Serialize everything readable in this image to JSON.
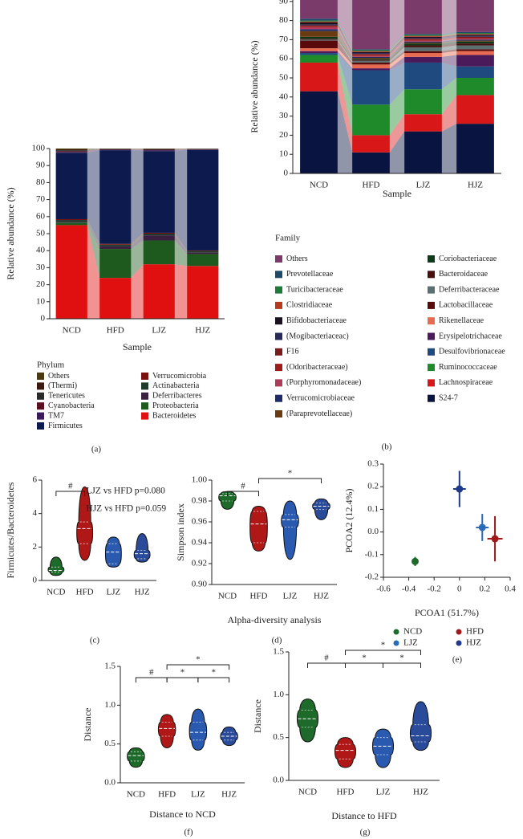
{
  "chart_data": [
    {
      "type": "stacked_bar",
      "panel_label": "(a)",
      "x_label": "Sample",
      "y_label": "Relative abundance (%)",
      "legend_title": "Phylum",
      "categories": [
        "NCD",
        "HFD",
        "LJZ",
        "HJZ"
      ],
      "ylim": [
        0,
        100
      ],
      "yticks": [
        0,
        10,
        20,
        30,
        40,
        50,
        60,
        70,
        80,
        90,
        100
      ],
      "series": [
        {
          "name": "Others",
          "color": "#4a3a12",
          "values": [
            0.7,
            0.2,
            0.3,
            0.1
          ]
        },
        {
          "name": "(Thermi)",
          "color": "#3a1a10",
          "values": [
            0.3,
            0.1,
            0.1,
            0.1
          ]
        },
        {
          "name": "Tenericutes",
          "color": "#2a2a2a",
          "values": [
            0.5,
            0.2,
            0.3,
            0.2
          ]
        },
        {
          "name": "Cyanobacteria",
          "color": "#5a1020",
          "values": [
            0.5,
            0.2,
            0.3,
            0.2
          ]
        },
        {
          "name": "TM7",
          "color": "#3a1a5a",
          "values": [
            0.5,
            0.3,
            0.5,
            0.3
          ]
        },
        {
          "name": "Firmicutes",
          "color": "#0d1a4d",
          "values": [
            39,
            55,
            48,
            59
          ]
        },
        {
          "name": "Verrucomicrobia",
          "color": "#7a1010",
          "values": [
            0.5,
            0.5,
            0.5,
            0.3
          ]
        },
        {
          "name": "Actinabacteria",
          "color": "#1e3a2a",
          "values": [
            1,
            1,
            1,
            0.8
          ]
        },
        {
          "name": "Deferribacteres",
          "color": "#3a2040",
          "values": [
            0.5,
            1.5,
            3,
            1
          ]
        },
        {
          "name": "Proteobacteria",
          "color": "#1e5a1e",
          "values": [
            1.5,
            17,
            14,
            7
          ]
        },
        {
          "name": "Bacteroidetes",
          "color": "#e01010",
          "values": [
            55,
            24,
            32,
            31
          ]
        }
      ]
    },
    {
      "type": "stacked_bar",
      "panel_label": "(b)",
      "x_label": "Sample",
      "y_label": "Relative abundance (%)",
      "legend_title": "Family",
      "categories": [
        "NCD",
        "HFD",
        "LJZ",
        "HJZ"
      ],
      "ylim": [
        0,
        100
      ],
      "yticks": [
        0,
        10,
        20,
        30,
        40,
        50,
        60,
        70,
        80,
        90
      ],
      "series": [
        {
          "name": "Others",
          "color": "#7a3a6a",
          "values": [
            19,
            35,
            27,
            26
          ]
        },
        {
          "name": "Prevotellaceae",
          "color": "#1e4a6a",
          "values": [
            1,
            0.5,
            0.5,
            0.5
          ]
        },
        {
          "name": "Turicibacteraceae",
          "color": "#1e7a3a",
          "values": [
            0.5,
            0.5,
            0.5,
            0.5
          ]
        },
        {
          "name": "Clostridiaceae",
          "color": "#b83a1e",
          "values": [
            0.5,
            0.5,
            0.5,
            0.5
          ]
        },
        {
          "name": "Bifidobacteriaceae",
          "color": "#1a1020",
          "values": [
            1,
            0.5,
            0.5,
            0.5
          ]
        },
        {
          "name": "(Mogibacteriaceac)",
          "color": "#2a2a5a",
          "values": [
            0.5,
            0.5,
            0.5,
            0.5
          ]
        },
        {
          "name": "F16",
          "color": "#7a1a1a",
          "values": [
            0.5,
            0.5,
            0.5,
            0.5
          ]
        },
        {
          "name": "(Odoribacteraceae)",
          "color": "#a01a1a",
          "values": [
            0.5,
            0.5,
            0.5,
            0.5
          ]
        },
        {
          "name": "(Porphyromonadaceae)",
          "color": "#b03a5a",
          "values": [
            1,
            0.5,
            0.5,
            0.5
          ]
        },
        {
          "name": "Verrucomicrobiaceae",
          "color": "#1e2a6a",
          "values": [
            1,
            0.5,
            0.5,
            0.5
          ]
        },
        {
          "name": "(Paraprevotellaceae)",
          "color": "#6a3a10",
          "values": [
            3,
            0.5,
            0.5,
            0.5
          ]
        },
        {
          "name": "Coriobacteriaceae",
          "color": "#0e3a1a",
          "values": [
            1,
            0.5,
            1,
            1
          ]
        },
        {
          "name": "Bacteroidaceae",
          "color": "#4a0e0e",
          "values": [
            0.5,
            0.5,
            1,
            1
          ]
        },
        {
          "name": "Deferribacteraceae",
          "color": "#5a7070",
          "values": [
            0.5,
            1,
            2,
            2
          ]
        },
        {
          "name": "Lactobacillaceae",
          "color": "#5a0a0a",
          "values": [
            4,
            1,
            1,
            1
          ]
        },
        {
          "name": "Rikenellaceae",
          "color": "#e86a50",
          "values": [
            1.5,
            2,
            2,
            2
          ]
        },
        {
          "name": "Erysipelotrichaceae",
          "color": "#4a1a5a",
          "values": [
            1,
            1,
            3,
            6
          ]
        },
        {
          "name": "Desulfovibrionaceae",
          "color": "#1e4a80",
          "values": [
            1,
            18,
            14,
            6
          ]
        },
        {
          "name": "Ruminococcaceae",
          "color": "#1e8a2a",
          "values": [
            4,
            16,
            13,
            9
          ]
        },
        {
          "name": "Lachnospiraceae",
          "color": "#d81818",
          "values": [
            15,
            9,
            9,
            15
          ]
        },
        {
          "name": "S24-7",
          "color": "#0a1440",
          "values": [
            43,
            11,
            22,
            26
          ]
        }
      ]
    },
    {
      "type": "violin",
      "panel_label": "(c)",
      "y_label": "Firmicutes/Bacteroidetes",
      "ylim": [
        0,
        6
      ],
      "yticks": [
        0,
        2,
        4,
        6
      ],
      "annotations": [
        {
          "text": "#",
          "between": [
            "NCD",
            "HFD"
          ]
        }
      ],
      "notes": [
        "LJZ vs HFD p=0.080",
        "HJZ vs HFD p=0.059"
      ],
      "groups": [
        {
          "name": "NCD",
          "color": "#1e6a2a",
          "min": 0.3,
          "q1": 0.5,
          "median": 0.6,
          "q3": 0.8,
          "max": 1.4
        },
        {
          "name": "HFD",
          "color": "#b01818",
          "min": 1.2,
          "q1": 2.2,
          "median": 3.1,
          "q3": 3.5,
          "max": 5.6
        },
        {
          "name": "LJZ",
          "color": "#2a5ab0",
          "min": 0.8,
          "q1": 1.0,
          "median": 1.7,
          "q3": 2.2,
          "max": 2.6
        },
        {
          "name": "HJZ",
          "color": "#2a4a9a",
          "min": 1.1,
          "q1": 1.3,
          "median": 1.6,
          "q3": 1.8,
          "max": 2.8
        }
      ]
    },
    {
      "type": "violin",
      "panel_label": "(d)",
      "y_label": "Simpson index",
      "x_label": "Alpha-diversity analysis",
      "ylim": [
        0.9,
        1
      ],
      "yticks": [
        {
          "value": 0.9,
          "label": "0.90"
        },
        0.92,
        0.94,
        0.96,
        0.98,
        {
          "value": 1,
          "label": "1.00"
        }
      ],
      "annotations": [
        {
          "text": "#",
          "between": [
            "NCD",
            "HFD"
          ]
        },
        {
          "text": "*",
          "between": [
            "HFD",
            "HJZ"
          ]
        }
      ],
      "groups": [
        {
          "name": "NCD",
          "color": "#1e6a2a",
          "min": 0.972,
          "q1": 0.98,
          "median": 0.985,
          "q3": 0.987,
          "max": 0.989
        },
        {
          "name": "HFD",
          "color": "#b01818",
          "min": 0.932,
          "q1": 0.94,
          "median": 0.958,
          "q3": 0.97,
          "max": 0.975
        },
        {
          "name": "LJZ",
          "color": "#2a5ab0",
          "min": 0.924,
          "q1": 0.955,
          "median": 0.962,
          "q3": 0.967,
          "max": 0.98
        },
        {
          "name": "HJZ",
          "color": "#2a4a9a",
          "min": 0.962,
          "q1": 0.972,
          "median": 0.975,
          "q3": 0.978,
          "max": 0.982
        }
      ]
    },
    {
      "type": "scatter",
      "panel_label": "(e)",
      "x_label": "PCOA1 (51.7%)",
      "y_label": "PCOA2 (12.4%)",
      "xlim": [
        -0.6,
        0.4
      ],
      "xticks": [
        -0.6,
        -0.4,
        -0.2,
        0,
        0.2,
        0.4
      ],
      "ylim": [
        -0.2,
        0.3
      ],
      "yticks": [
        -0.2,
        -0.1,
        {
          "value": 0,
          "label": "0.0"
        },
        0.1,
        0.2,
        0.3
      ],
      "series": [
        {
          "name": "NCD",
          "color": "#1e6a2a",
          "x": [
            -0.35
          ],
          "y": [
            -0.13
          ],
          "xerr": [
            0.02
          ],
          "yerr": [
            0.02
          ]
        },
        {
          "name": "HFD",
          "color": "#a01818",
          "x": [
            0.28
          ],
          "y": [
            -0.03
          ],
          "xerr": [
            0.06
          ],
          "yerr": [
            0.1
          ]
        },
        {
          "name": "LJZ",
          "color": "#2a6ab8",
          "x": [
            0.18
          ],
          "y": [
            0.02
          ],
          "xerr": [
            0.05
          ],
          "yerr": [
            0.06
          ]
        },
        {
          "name": "HJZ",
          "color": "#1e3a8a",
          "x": [
            0
          ],
          "y": [
            0.19
          ],
          "xerr": [
            0.05
          ],
          "yerr": [
            0.08
          ]
        }
      ]
    },
    {
      "type": "violin",
      "panel_label": "(f)",
      "y_label": "Distance",
      "x_label": "Distance to NCD",
      "ylim": [
        0,
        1.5
      ],
      "yticks": [
        {
          "value": 0,
          "label": "0.0"
        },
        0.5,
        {
          "value": 1,
          "label": "1.0"
        },
        1.5
      ],
      "annotations": [
        {
          "text": "#",
          "between": [
            "NCD",
            "HFD"
          ]
        },
        {
          "text": "*",
          "between": [
            "HFD",
            "HJZ"
          ]
        },
        {
          "text": "*",
          "between": [
            "HFD",
            "LJZ"
          ]
        },
        {
          "text": "*",
          "between": [
            "LJZ",
            "HJZ"
          ]
        }
      ],
      "groups": [
        {
          "name": "NCD",
          "color": "#1e6a2a",
          "min": 0.2,
          "q1": 0.28,
          "median": 0.35,
          "q3": 0.4,
          "max": 0.45
        },
        {
          "name": "HFD",
          "color": "#b01818",
          "min": 0.45,
          "q1": 0.6,
          "median": 0.7,
          "q3": 0.78,
          "max": 0.88
        },
        {
          "name": "LJZ",
          "color": "#2a5ab0",
          "min": 0.42,
          "q1": 0.55,
          "median": 0.65,
          "q3": 0.78,
          "max": 0.95
        },
        {
          "name": "HJZ",
          "color": "#2a4a9a",
          "min": 0.48,
          "q1": 0.55,
          "median": 0.6,
          "q3": 0.65,
          "max": 0.72
        }
      ]
    },
    {
      "type": "violin",
      "panel_label": "(g)",
      "y_label": "Distance",
      "x_label": "Distance to HFD",
      "ylim": [
        0,
        1.5
      ],
      "yticks": [
        {
          "value": 0,
          "label": "0.0"
        },
        0.5,
        {
          "value": 1,
          "label": "1.0"
        },
        1.5
      ],
      "annotations": [
        {
          "text": "#",
          "between": [
            "NCD",
            "HFD"
          ]
        },
        {
          "text": "*",
          "between": [
            "HFD",
            "HJZ"
          ]
        },
        {
          "text": "*",
          "between": [
            "HFD",
            "LJZ"
          ]
        },
        {
          "text": "*",
          "between": [
            "LJZ",
            "HJZ"
          ]
        }
      ],
      "groups": [
        {
          "name": "NCD",
          "color": "#1e6a2a",
          "min": 0.45,
          "q1": 0.62,
          "median": 0.72,
          "q3": 0.82,
          "max": 0.95
        },
        {
          "name": "HFD",
          "color": "#b01818",
          "min": 0.15,
          "q1": 0.25,
          "median": 0.35,
          "q3": 0.42,
          "max": 0.5
        },
        {
          "name": "LJZ",
          "color": "#2a5ab0",
          "min": 0.15,
          "q1": 0.3,
          "median": 0.4,
          "q3": 0.5,
          "max": 0.6
        },
        {
          "name": "HJZ",
          "color": "#2a4a9a",
          "min": 0.35,
          "q1": 0.45,
          "median": 0.52,
          "q3": 0.65,
          "max": 0.92
        }
      ]
    }
  ]
}
